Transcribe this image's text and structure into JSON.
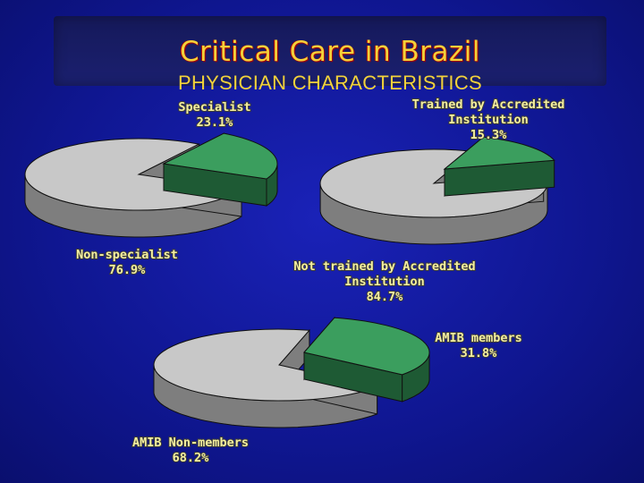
{
  "slide": {
    "title": "Critical Care in Brazil",
    "subtitle": "PHYSICIAN CHARACTERISTICS"
  },
  "colors": {
    "slice_primary": "#3b9e5e",
    "slice_primary_side": "#1e5a34",
    "slice_rest": "#c8c8c8",
    "slice_rest_side": "#7e7e7e",
    "label_text": "#f5f0a0",
    "title_text": "#f2d23a"
  },
  "chart_data": [
    {
      "type": "pie",
      "title": "",
      "slices": [
        {
          "label_lines": [
            "Specialist",
            "23.1%"
          ],
          "value": 23.1,
          "exploded": true
        },
        {
          "label_lines": [
            "Non-specialist",
            "76.9%"
          ],
          "value": 76.9,
          "exploded": false
        }
      ]
    },
    {
      "type": "pie",
      "title": "",
      "slices": [
        {
          "label_lines": [
            "Trained by Accredited",
            "Institution",
            "15.3%"
          ],
          "value": 15.3,
          "exploded": true
        },
        {
          "label_lines": [
            "Not trained by Accredited",
            "Institution",
            "84.7%"
          ],
          "value": 84.7,
          "exploded": false
        }
      ]
    },
    {
      "type": "pie",
      "title": "",
      "slices": [
        {
          "label_lines": [
            "AMIB members",
            "31.8%"
          ],
          "value": 31.8,
          "exploded": true
        },
        {
          "label_lines": [
            "AMIB Non-members",
            "68.2%"
          ],
          "value": 68.2,
          "exploded": false
        }
      ]
    }
  ]
}
